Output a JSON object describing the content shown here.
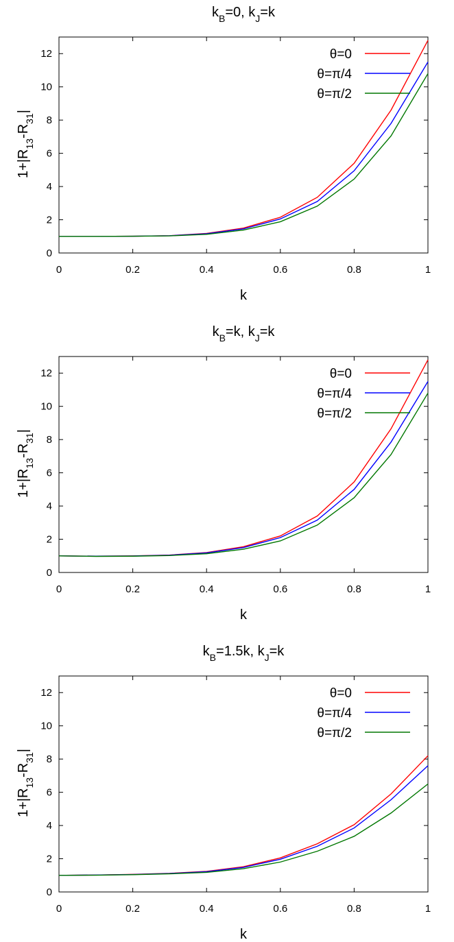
{
  "chart_data": [
    {
      "type": "line",
      "title": {
        "base": "k",
        "sub1": "B",
        "mid": "=0, k",
        "sub2": "J",
        "tail": "=k"
      },
      "xlabel": "k",
      "ylabel": {
        "pre": "1+|R",
        "sub1": "13",
        "mid": "-R",
        "sub2": "31",
        "tail": "|"
      },
      "xlim": [
        0,
        1
      ],
      "ylim": [
        0,
        13
      ],
      "xticks": [
        "0",
        "0.2",
        "0.4",
        "0.6",
        "0.8",
        "1"
      ],
      "yticks": [
        "0",
        "2",
        "4",
        "6",
        "8",
        "10",
        "12"
      ],
      "grid": false,
      "legend_position": "top-right",
      "x": [
        0,
        0.1,
        0.2,
        0.3,
        0.4,
        0.5,
        0.6,
        0.7,
        0.8,
        0.9,
        1.0
      ],
      "series": [
        {
          "name": "θ=0",
          "color": "#ff0000",
          "values": [
            1.0,
            1.0,
            1.01,
            1.04,
            1.18,
            1.5,
            2.15,
            3.35,
            5.4,
            8.6,
            12.8
          ]
        },
        {
          "name": "θ=π/4",
          "color": "#0000ff",
          "values": [
            1.0,
            1.0,
            1.01,
            1.04,
            1.16,
            1.45,
            2.05,
            3.1,
            4.95,
            7.8,
            11.5
          ]
        },
        {
          "name": "θ=π/2",
          "color": "#007700",
          "values": [
            1.0,
            1.0,
            1.01,
            1.03,
            1.12,
            1.38,
            1.88,
            2.82,
            4.45,
            7.05,
            10.8
          ]
        }
      ]
    },
    {
      "type": "line",
      "title": {
        "base": "k",
        "sub1": "B",
        "mid": "=k, k",
        "sub2": "J",
        "tail": "=k"
      },
      "xlabel": "k",
      "ylabel": {
        "pre": "1+|R",
        "sub1": "13",
        "mid": "-R",
        "sub2": "31",
        "tail": "|"
      },
      "xlim": [
        0,
        1
      ],
      "ylim": [
        0,
        13
      ],
      "xticks": [
        "0",
        "0.2",
        "0.4",
        "0.6",
        "0.8",
        "1"
      ],
      "yticks": [
        "0",
        "2",
        "4",
        "6",
        "8",
        "10",
        "12"
      ],
      "grid": false,
      "legend_position": "top-right",
      "x": [
        0,
        0.1,
        0.2,
        0.3,
        0.4,
        0.5,
        0.6,
        0.7,
        0.8,
        0.9,
        1.0
      ],
      "series": [
        {
          "name": "θ=0",
          "color": "#ff0000",
          "values": [
            1.0,
            0.98,
            1.0,
            1.05,
            1.2,
            1.55,
            2.2,
            3.4,
            5.45,
            8.65,
            12.8
          ]
        },
        {
          "name": "θ=π/4",
          "color": "#0000ff",
          "values": [
            1.0,
            0.98,
            0.99,
            1.04,
            1.18,
            1.5,
            2.1,
            3.15,
            5.0,
            7.85,
            11.5
          ]
        },
        {
          "name": "θ=π/2",
          "color": "#007700",
          "values": [
            1.0,
            0.97,
            0.98,
            1.02,
            1.13,
            1.4,
            1.9,
            2.85,
            4.5,
            7.1,
            10.8
          ]
        }
      ]
    },
    {
      "type": "line",
      "title": {
        "base": "k",
        "sub1": "B",
        "mid": "=1.5k, k",
        "sub2": "J",
        "tail": "=k"
      },
      "xlabel": "k",
      "ylabel": {
        "pre": "1+|R",
        "sub1": "13",
        "mid": "-R",
        "sub2": "31",
        "tail": "|"
      },
      "xlim": [
        0,
        1
      ],
      "ylim": [
        0,
        13
      ],
      "xticks": [
        "0",
        "0.2",
        "0.4",
        "0.6",
        "0.8",
        "1"
      ],
      "yticks": [
        "0",
        "2",
        "4",
        "6",
        "8",
        "10",
        "12"
      ],
      "grid": false,
      "legend_position": "top-right",
      "x": [
        0,
        0.1,
        0.2,
        0.3,
        0.4,
        0.5,
        0.6,
        0.7,
        0.8,
        0.9,
        1.0
      ],
      "series": [
        {
          "name": "θ=0",
          "color": "#ff0000",
          "values": [
            1.0,
            1.02,
            1.06,
            1.12,
            1.24,
            1.52,
            2.05,
            2.9,
            4.05,
            5.9,
            8.2
          ]
        },
        {
          "name": "θ=π/4",
          "color": "#0000ff",
          "values": [
            1.0,
            1.02,
            1.05,
            1.11,
            1.22,
            1.48,
            1.97,
            2.75,
            3.85,
            5.55,
            7.6
          ]
        },
        {
          "name": "θ=π/2",
          "color": "#007700",
          "values": [
            1.0,
            1.01,
            1.04,
            1.09,
            1.18,
            1.4,
            1.8,
            2.45,
            3.35,
            4.75,
            6.5
          ]
        }
      ]
    }
  ]
}
